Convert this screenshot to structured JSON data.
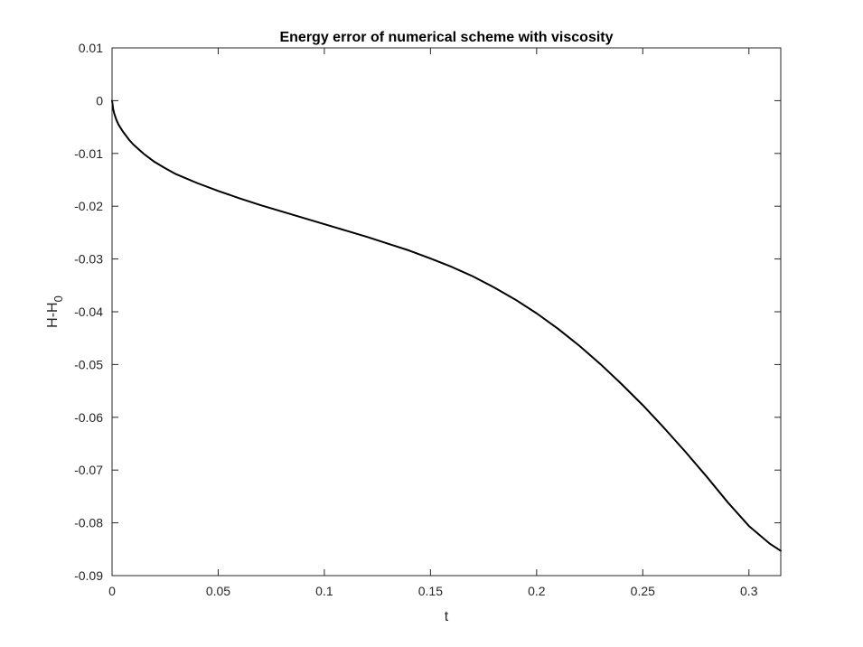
{
  "chart_data": {
    "type": "line",
    "title": "Energy error of numerical scheme with viscosity",
    "xlabel": "t",
    "ylabel_main": "H-H",
    "ylabel_sub": "0",
    "xlim": [
      0,
      0.315
    ],
    "ylim": [
      -0.09,
      0.01
    ],
    "xticks": [
      0,
      0.05,
      0.1,
      0.15,
      0.2,
      0.25,
      0.3
    ],
    "xtick_labels": [
      "0",
      "0.05",
      "0.1",
      "0.15",
      "0.2",
      "0.25",
      "0.3"
    ],
    "yticks": [
      0.01,
      0,
      -0.01,
      -0.02,
      -0.03,
      -0.04,
      -0.05,
      -0.06,
      -0.07,
      -0.08,
      -0.09
    ],
    "ytick_labels": [
      "0.01",
      "0",
      "-0.01",
      "-0.02",
      "-0.03",
      "-0.04",
      "-0.05",
      "-0.06",
      "-0.07",
      "-0.08",
      "-0.09"
    ],
    "grid": false,
    "box": true,
    "line_color": "#000000",
    "x": [
      0,
      0.0005,
      0.001,
      0.002,
      0.003,
      0.005,
      0.008,
      0.01,
      0.015,
      0.02,
      0.025,
      0.03,
      0.04,
      0.05,
      0.06,
      0.07,
      0.08,
      0.09,
      0.1,
      0.11,
      0.12,
      0.13,
      0.14,
      0.15,
      0.16,
      0.17,
      0.18,
      0.19,
      0.2,
      0.21,
      0.22,
      0.23,
      0.24,
      0.25,
      0.26,
      0.27,
      0.28,
      0.29,
      0.3,
      0.31,
      0.315
    ],
    "y": [
      0,
      -0.0015,
      -0.0024,
      -0.0036,
      -0.0045,
      -0.0058,
      -0.0074,
      -0.0083,
      -0.0101,
      -0.0116,
      -0.0128,
      -0.0139,
      -0.0156,
      -0.0171,
      -0.0185,
      -0.0198,
      -0.021,
      -0.0222,
      -0.0234,
      -0.0246,
      -0.0258,
      -0.0271,
      -0.0284,
      -0.0299,
      -0.0315,
      -0.0333,
      -0.0354,
      -0.0377,
      -0.0403,
      -0.0432,
      -0.0464,
      -0.0499,
      -0.0537,
      -0.0577,
      -0.062,
      -0.0665,
      -0.0712,
      -0.0761,
      -0.0806,
      -0.084,
      -0.0853
    ]
  }
}
